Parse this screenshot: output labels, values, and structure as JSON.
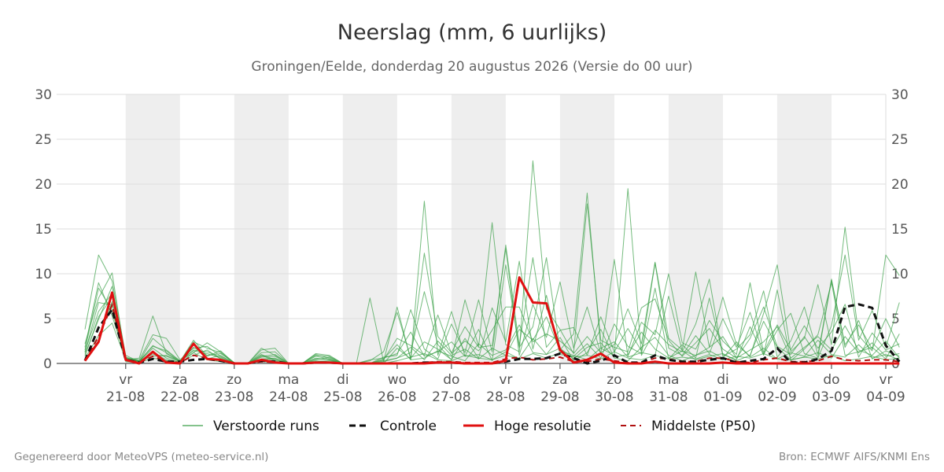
{
  "colors": {
    "ensemble": "#3a9f47",
    "control": "#111111",
    "high_res": "#e01010",
    "median": "#b01010",
    "weekend_band": "#eeeeee",
    "grid": "#dddddd"
  },
  "footer": {
    "left": "Gegenereerd door MeteoVPS (meteo-service.nl)",
    "right": "Bron: ECMWF AIFS/KNMI Ens"
  },
  "chart_data": {
    "type": "line",
    "title": "Neerslag (mm, 6 uurlijks)",
    "subtitle": "Groningen/Eelde, donderdag 20 augustus 2026 (Versie do 00 uur)",
    "ylim": [
      0,
      30
    ],
    "yticks": [
      0,
      5,
      10,
      15,
      20,
      25,
      30
    ],
    "xlim": [
      0,
      59
    ],
    "x_ticks": [
      {
        "x": 3,
        "day": "vr",
        "date": "21-08"
      },
      {
        "x": 7,
        "day": "za",
        "date": "22-08"
      },
      {
        "x": 11,
        "day": "zo",
        "date": "23-08"
      },
      {
        "x": 15,
        "day": "ma",
        "date": "24-08"
      },
      {
        "x": 19,
        "day": "di",
        "date": "25-08"
      },
      {
        "x": 23,
        "day": "wo",
        "date": "26-08"
      },
      {
        "x": 27,
        "day": "do",
        "date": "27-08"
      },
      {
        "x": 31,
        "day": "vr",
        "date": "28-08"
      },
      {
        "x": 35,
        "day": "za",
        "date": "29-08"
      },
      {
        "x": 39,
        "day": "zo",
        "date": "30-08"
      },
      {
        "x": 43,
        "day": "ma",
        "date": "31-08"
      },
      {
        "x": 47,
        "day": "di",
        "date": "01-09"
      },
      {
        "x": 51,
        "day": "wo",
        "date": "02-09"
      },
      {
        "x": 55,
        "day": "do",
        "date": "03-09"
      },
      {
        "x": 59,
        "day": "vr",
        "date": "04-09"
      }
    ],
    "shaded_days": [
      [
        3,
        7
      ],
      [
        11,
        15
      ],
      [
        19,
        23
      ],
      [
        27,
        31
      ],
      [
        35,
        39
      ],
      [
        43,
        47
      ],
      [
        51,
        55
      ]
    ],
    "x_unit": "6-hour step from forecast start",
    "legend": [
      "Verstoorde runs",
      "Controle",
      "Hoge resolutie",
      "Middelste (P50)"
    ],
    "control": [
      0.3,
      4.0,
      6.0,
      0.4,
      0.1,
      0.5,
      0.2,
      0.2,
      0.4,
      0.5,
      0.3,
      0.0,
      0.0,
      0.3,
      0.2,
      0.0,
      0.0,
      0.1,
      0.1,
      0.0,
      0.0,
      0.0,
      0.0,
      0.0,
      0.0,
      0.1,
      0.1,
      0.1,
      0.0,
      0.0,
      0.0,
      0.2,
      0.5,
      0.5,
      0.6,
      1.1,
      0.6,
      0.0,
      0.3,
      0.9,
      0.1,
      0.1,
      0.9,
      0.4,
      0.2,
      0.2,
      0.4,
      0.6,
      0.1,
      0.3,
      0.5,
      1.7,
      0.1,
      0.1,
      0.5,
      1.4,
      6.3,
      6.6,
      6.2,
      2.0,
      0.2
    ],
    "high_res": [
      0.3,
      2.4,
      7.9,
      0.4,
      0.0,
      1.3,
      0.1,
      0.0,
      2.2,
      0.5,
      0.4,
      0.0,
      0.0,
      0.4,
      0.1,
      0.0,
      0.0,
      0.1,
      0.1,
      0.0,
      0.0,
      0.0,
      0.0,
      0.0,
      0.0,
      0.0,
      0.1,
      0.1,
      0.0,
      0.0,
      0.0,
      0.3,
      9.6,
      6.8,
      6.7,
      1.5,
      0.1,
      0.4,
      1.1,
      0.1,
      0.0,
      0.0,
      0.2,
      0.0,
      0.0,
      0.0,
      0.0,
      0.1,
      0.0,
      0.0,
      0.0,
      0.0,
      0.0,
      0.0,
      0.0,
      0.0,
      0.0,
      0.0,
      0.0,
      0.0,
      0.0
    ],
    "median": [
      0.3,
      3.0,
      6.5,
      0.5,
      0.1,
      0.8,
      0.2,
      0.1,
      0.9,
      0.6,
      0.3,
      0.0,
      0.0,
      0.2,
      0.1,
      0.0,
      0.0,
      0.1,
      0.1,
      0.0,
      0.0,
      0.0,
      0.0,
      0.0,
      0.0,
      0.1,
      0.2,
      0.2,
      0.1,
      0.1,
      0.1,
      0.5,
      0.7,
      0.4,
      0.5,
      0.7,
      0.2,
      0.2,
      0.5,
      0.3,
      0.1,
      0.1,
      0.6,
      0.5,
      0.2,
      0.2,
      0.6,
      0.6,
      0.2,
      0.1,
      0.4,
      0.6,
      0.2,
      0.2,
      0.3,
      0.8,
      0.4,
      0.3,
      0.4,
      0.4,
      0.2
    ],
    "ensemble": [
      [
        1.2,
        6.8,
        6.5,
        0.6,
        0.2,
        2.0,
        1.2,
        0.1,
        1.8,
        0.9,
        1.1,
        0.1,
        0.0,
        0.8,
        1.0,
        0.0,
        0.0,
        0.6,
        0.4,
        0.0,
        0.0,
        0.0,
        0.5,
        2.1,
        0.4,
        0.6,
        1.4,
        0.8,
        0.3,
        2.2,
        0.9,
        1.5,
        4.3,
        1.2,
        1.0,
        2.9,
        0.3,
        1.2,
        3.8,
        0.6,
        0.3,
        1.8,
        2.9,
        0.9,
        0.3,
        0.9,
        1.8,
        3.0,
        0.6,
        1.5,
        2.4,
        4.1,
        0.6,
        1.8,
        3.0,
        1.5,
        4.2,
        1.5,
        0.9,
        2.5,
        0.6
      ],
      [
        0.8,
        5.2,
        7.4,
        0.5,
        0.3,
        1.0,
        0.8,
        0.2,
        1.5,
        1.3,
        0.7,
        0.0,
        0.1,
        0.5,
        0.6,
        0.0,
        0.0,
        0.3,
        0.2,
        0.0,
        0.0,
        0.4,
        0.6,
        1.1,
        3.5,
        0.8,
        1.3,
        2.4,
        0.8,
        1.0,
        0.4,
        0.9,
        3.8,
        2.6,
        5.2,
        1.4,
        0.9,
        0.4,
        1.7,
        2.4,
        0.7,
        1.2,
        0.9,
        7.5,
        1.4,
        0.4,
        0.8,
        1.1,
        0.3,
        0.9,
        4.7,
        1.8,
        0.4,
        0.7,
        1.2,
        0.6,
        3.0,
        1.2,
        2.3,
        0.8,
        1.1
      ],
      [
        3.8,
        12.1,
        9.2,
        0.9,
        0.2,
        2.8,
        1.5,
        0.3,
        1.2,
        2.3,
        1.3,
        0.1,
        0.0,
        1.5,
        1.7,
        0.0,
        0.0,
        0.9,
        0.8,
        0.0,
        0.0,
        0.0,
        0.3,
        0.6,
        1.2,
        8.0,
        2.1,
        0.4,
        7.1,
        1.9,
        15.7,
        2.1,
        1.3,
        22.6,
        6.1,
        3.8,
        1.1,
        3.0,
        1.2,
        2.1,
        6.1,
        2.2,
        11.3,
        2.8,
        1.5,
        10.2,
        1.8,
        7.4,
        2.1,
        0.8,
        5.6,
        11.0,
        1.3,
        2.8,
        8.8,
        2.1,
        15.2,
        3.1,
        1.4,
        12.1,
        9.8
      ],
      [
        1.5,
        8.4,
        5.9,
        0.3,
        0.2,
        1.7,
        0.6,
        0.1,
        2.1,
        0.5,
        0.9,
        0.0,
        0.0,
        1.0,
        0.4,
        0.0,
        0.0,
        0.8,
        0.5,
        0.0,
        0.0,
        7.3,
        0.2,
        6.3,
        0.4,
        18.1,
        0.9,
        5.8,
        0.8,
        3.8,
        0.3,
        11.0,
        1.8,
        4.1,
        11.8,
        1.5,
        3.3,
        19.0,
        1.7,
        0.9,
        19.5,
        0.9,
        3.7,
        2.1,
        1.3,
        4.4,
        9.4,
        0.8,
        1.6,
        3.2,
        8.1,
        0.7,
        2.5,
        6.3,
        1.0,
        9.4,
        1.8,
        4.8,
        0.5,
        1.4,
        0.8
      ],
      [
        2.2,
        7.3,
        10.1,
        0.4,
        0.6,
        5.3,
        1.1,
        0.3,
        1.4,
        1.1,
        0.6,
        0.0,
        0.0,
        0.9,
        0.3,
        0.0,
        0.0,
        0.4,
        0.7,
        0.0,
        0.0,
        0.0,
        0.0,
        1.7,
        0.5,
        12.3,
        3.0,
        1.2,
        4.1,
        1.8,
        2.0,
        12.8,
        0.9,
        6.6,
        2.9,
        9.1,
        1.7,
        6.3,
        1.1,
        11.6,
        0.8,
        4.6,
        3.2,
        10.0,
        2.3,
        1.6,
        4.8,
        2.5,
        1.0,
        9.0,
        1.2,
        4.3,
        1.5,
        4.2,
        1.7,
        3.5,
        6.6,
        0.7,
        3.4,
        1.5,
        2.2
      ],
      [
        1.0,
        4.9,
        8.6,
        0.5,
        0.3,
        0.8,
        0.9,
        0.2,
        2.6,
        0.8,
        1.4,
        0.0,
        0.0,
        1.7,
        0.9,
        0.0,
        0.0,
        1.0,
        0.6,
        0.0,
        0.0,
        0.3,
        1.3,
        5.7,
        0.6,
        2.4,
        1.6,
        0.4,
        2.8,
        0.6,
        6.2,
        2.4,
        11.4,
        1.6,
        7.6,
        1.0,
        0.8,
        2.2,
        0.6,
        4.4,
        1.9,
        1.1,
        8.4,
        0.5,
        2.1,
        0.6,
        7.3,
        1.0,
        0.4,
        4.1,
        0.9,
        8.2,
        0.3,
        1.6,
        3.2,
        9.0,
        0.9,
        1.3,
        1.8,
        0.5,
        3.3
      ],
      [
        0.6,
        3.1,
        4.5,
        0.4,
        0.2,
        1.2,
        0.4,
        0.1,
        0.9,
        1.5,
        0.5,
        0.0,
        0.0,
        0.4,
        0.5,
        0.0,
        0.0,
        0.2,
        0.3,
        0.0,
        0.0,
        0.0,
        0.2,
        0.6,
        1.8,
        0.4,
        2.5,
        0.9,
        1.6,
        0.5,
        1.7,
        0.9,
        0.6,
        2.8,
        1.0,
        1.7,
        0.5,
        1.8,
        2.3,
        0.7,
        1.0,
        3.5,
        1.6,
        0.6,
        1.4,
        0.9,
        1.4,
        0.6,
        2.4,
        0.7,
        1.7,
        0.5,
        1.2,
        0.8,
        2.6,
        1.0,
        0.7,
        2.1,
        0.6,
        1.0,
        0.4
      ],
      [
        1.8,
        9.0,
        5.3,
        0.6,
        0.4,
        3.2,
        2.8,
        0.4,
        1.7,
        1.9,
        0.8,
        0.1,
        0.0,
        1.2,
        1.3,
        0.0,
        0.0,
        1.1,
        0.9,
        0.0,
        0.0,
        0.0,
        0.7,
        0.9,
        6.0,
        1.6,
        0.5,
        4.4,
        1.2,
        7.1,
        1.3,
        13.2,
        2.0,
        11.8,
        1.8,
        3.7,
        4.0,
        0.9,
        5.2,
        1.3,
        3.9,
        1.4,
        11.2,
        1.7,
        0.9,
        3.1,
        1.1,
        5.0,
        1.8,
        5.7,
        1.0,
        3.7,
        5.6,
        1.1,
        0.6,
        4.2,
        12.1,
        2.6,
        5.9,
        1.8,
        6.8
      ],
      [
        0.4,
        2.6,
        6.9,
        0.2,
        0.1,
        0.6,
        0.3,
        0.0,
        1.2,
        0.4,
        0.2,
        0.0,
        0.0,
        0.2,
        0.1,
        0.0,
        0.0,
        0.1,
        0.0,
        0.0,
        0.0,
        0.0,
        0.0,
        0.3,
        0.7,
        1.1,
        0.4,
        0.3,
        0.9,
        0.6,
        0.4,
        1.3,
        0.5,
        1.1,
        0.6,
        1.2,
        0.7,
        0.9,
        0.5,
        1.3,
        0.6,
        0.4,
        0.9,
        0.5,
        0.7,
        0.5,
        1.0,
        0.4,
        0.8,
        0.6,
        1.1,
        0.5,
        0.4,
        0.7,
        0.5,
        0.9,
        0.3,
        0.5,
        0.8,
        0.4,
        0.6
      ],
      [
        1.3,
        5.8,
        7.8,
        0.7,
        0.3,
        1.9,
        1.4,
        0.2,
        2.4,
        1.7,
        1.2,
        0.0,
        0.0,
        0.7,
        0.8,
        0.0,
        0.0,
        0.5,
        0.4,
        0.0,
        0.0,
        0.0,
        0.4,
        2.8,
        2.0,
        0.9,
        5.4,
        1.1,
        2.5,
        1.4,
        3.7,
        6.3,
        6.3,
        2.4,
        3.3,
        2.5,
        1.2,
        17.8,
        2.6,
        1.8,
        1.3,
        6.2,
        7.2,
        2.6,
        0.8,
        2.3,
        3.9,
        1.6,
        0.6,
        2.8,
        6.3,
        1.9,
        1.0,
        3.0,
        0.7,
        9.3,
        2.1,
        4.3,
        1.6,
        5.0,
        1.8
      ]
    ]
  }
}
